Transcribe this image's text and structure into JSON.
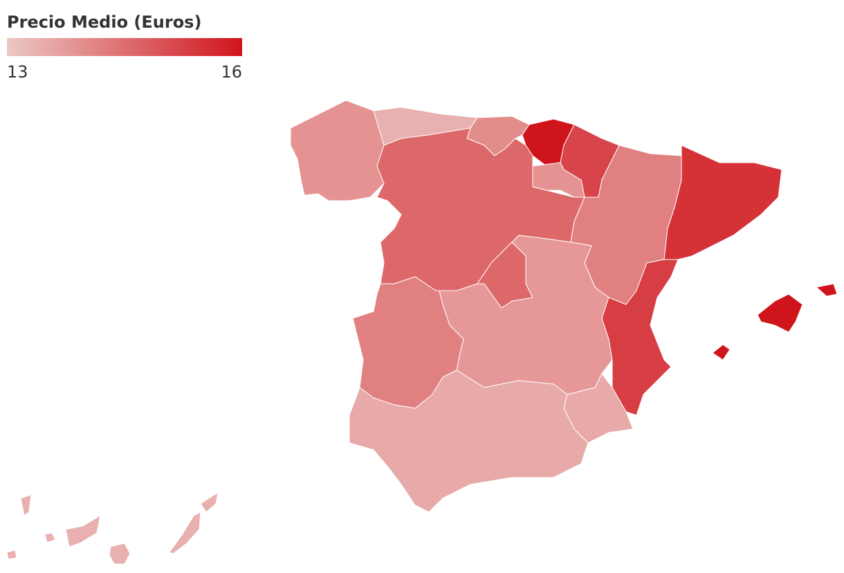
{
  "chart_data": {
    "type": "choropleth",
    "title": "Precio Medio (Euros)",
    "colorbar": {
      "range": [
        13,
        16
      ],
      "ticks": [
        13,
        16
      ],
      "colors": [
        "#ecc8c4",
        "#d0141c"
      ]
    },
    "values": [
      13.9,
      13.4,
      14.0,
      16.0,
      15.2,
      13.9,
      14.6,
      14.2,
      15.5,
      14.6,
      13.8,
      14.2,
      15.3,
      13.5,
      13.5,
      16.0,
      13.4
    ]
  }
}
